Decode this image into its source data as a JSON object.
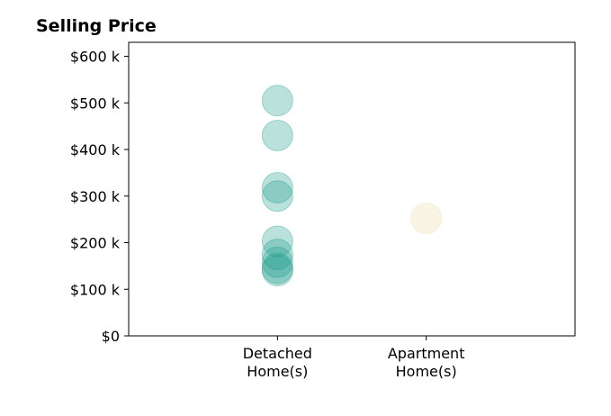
{
  "chart_data": {
    "type": "scatter",
    "title": "Selling Price",
    "xlabel": "",
    "ylabel": "",
    "categories": [
      "Detached\nHome(s)",
      "Apartment\nHome(s)"
    ],
    "xlim": [
      -1,
      2
    ],
    "ylim": [
      0,
      630000
    ],
    "y_ticks": [
      0,
      100000,
      200000,
      300000,
      400000,
      500000,
      600000
    ],
    "y_tick_labels": [
      "$0",
      "$100 k",
      "$200 k",
      "$300 k",
      "$400 k",
      "$500 k",
      "$600 k"
    ],
    "grid": false,
    "legend": "none",
    "series": [
      {
        "category": "Detached\nHome(s)",
        "color": "#1a9a8a",
        "values": [
          505000,
          430000,
          318000,
          300000,
          203000,
          175000,
          158000,
          145000,
          140000
        ]
      },
      {
        "category": "Apartment\nHome(s)",
        "color": "#f0d9a8",
        "values": [
          252000
        ]
      }
    ]
  }
}
